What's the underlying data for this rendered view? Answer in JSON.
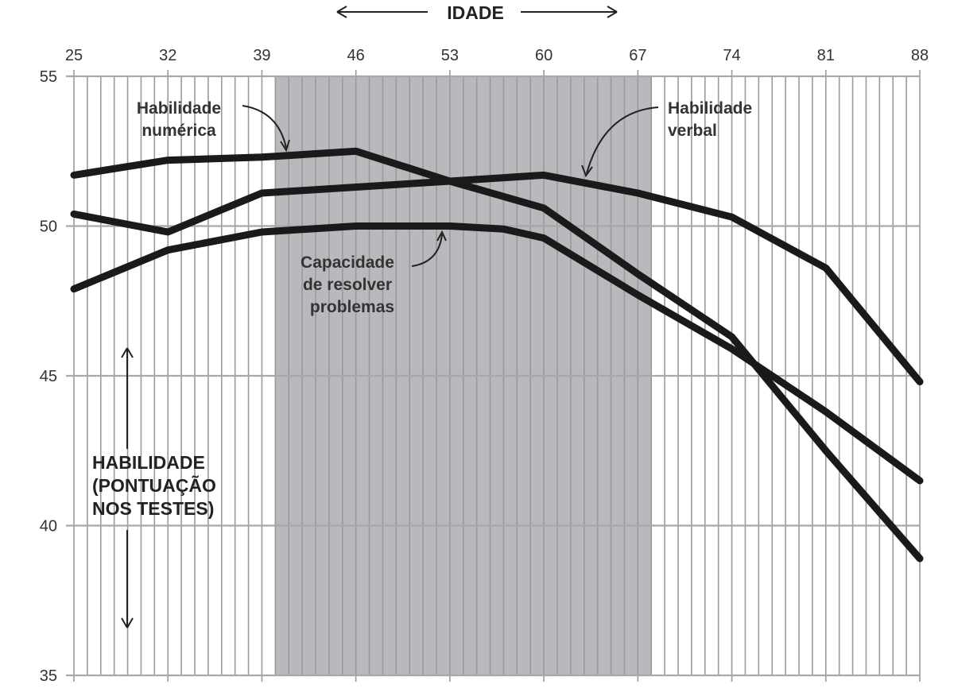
{
  "chart_data": {
    "type": "line",
    "title": "",
    "xlabel": "IDADE",
    "ylabel_lines": [
      "HABILIDADE",
      "(PONTUAÇÃO",
      "NOS TESTES)"
    ],
    "x_ticks": [
      25,
      32,
      39,
      46,
      53,
      60,
      67,
      74,
      81,
      88
    ],
    "y_ticks": [
      35,
      40,
      45,
      50,
      55
    ],
    "xlim": [
      25,
      88
    ],
    "ylim": [
      35,
      55
    ],
    "shaded_range": [
      40,
      68
    ],
    "grid": true,
    "series": [
      {
        "name_lines": [
          "Habilidade",
          "numérica"
        ],
        "points": [
          [
            25,
            51.7
          ],
          [
            32,
            52.2
          ],
          [
            39,
            52.3
          ],
          [
            46,
            52.5
          ],
          [
            53,
            51.5
          ],
          [
            60,
            50.6
          ],
          [
            67,
            48.4
          ],
          [
            74,
            46.3
          ],
          [
            81,
            42.5
          ],
          [
            88,
            38.9
          ]
        ]
      },
      {
        "name_lines": [
          "Habilidade",
          "verbal"
        ],
        "points": [
          [
            25,
            50.4
          ],
          [
            32,
            49.8
          ],
          [
            39,
            51.1
          ],
          [
            46,
            51.3
          ],
          [
            53,
            51.5
          ],
          [
            60,
            51.7
          ],
          [
            67,
            51.1
          ],
          [
            74,
            50.3
          ],
          [
            81,
            48.6
          ],
          [
            88,
            44.8
          ]
        ]
      },
      {
        "name_lines": [
          "Capacidade",
          "de resolver",
          "problemas"
        ],
        "points": [
          [
            25,
            47.9
          ],
          [
            32,
            49.2
          ],
          [
            39,
            49.8
          ],
          [
            46,
            50.0
          ],
          [
            53,
            50.0
          ],
          [
            57,
            49.9
          ],
          [
            60,
            49.6
          ],
          [
            67,
            47.7
          ],
          [
            74,
            45.9
          ],
          [
            81,
            43.8
          ],
          [
            88,
            41.5
          ]
        ]
      }
    ]
  }
}
